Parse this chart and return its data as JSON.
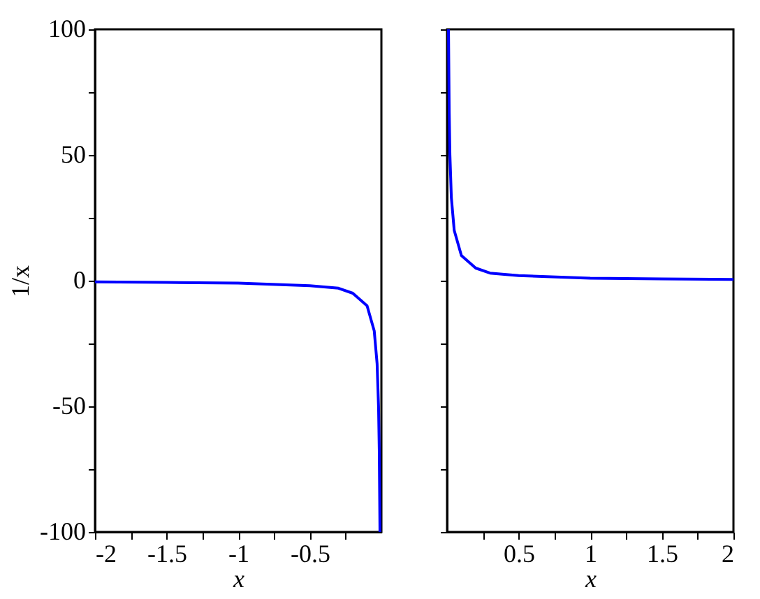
{
  "chart_data": [
    {
      "type": "line",
      "ylabel": "1/x",
      "xlabel": "x",
      "x": [
        -2,
        -1.5,
        -1,
        -0.5,
        -0.3,
        -0.2,
        -0.1,
        -0.05,
        -0.03,
        -0.02,
        -0.015,
        -0.01
      ],
      "series": [
        {
          "color": "#0000ff",
          "values": [
            -0.5,
            -0.7,
            -1,
            -2,
            -3,
            -5,
            -10,
            -20,
            -33,
            -50,
            -67,
            -100
          ]
        }
      ],
      "xlim": [
        -2,
        0
      ],
      "xticks": [
        -2,
        {
          "value": -1.75,
          "label": null
        },
        -1.5,
        {
          "value": -1.25,
          "label": null
        },
        -1,
        {
          "value": -0.75,
          "label": null
        },
        -0.5,
        {
          "value": -0.25,
          "label": null
        }
      ],
      "ylim": [
        -100,
        100
      ],
      "yticks": [
        -100,
        {
          "value": -75,
          "label": null
        },
        -50,
        {
          "value": -25,
          "label": null
        },
        0,
        {
          "value": 25,
          "label": null
        },
        50,
        {
          "value": 75,
          "label": null
        },
        100
      ],
      "grid": false
    },
    {
      "type": "line",
      "xlabel": "x",
      "x": [
        0.01,
        0.015,
        0.02,
        0.03,
        0.05,
        0.1,
        0.2,
        0.3,
        0.5,
        1,
        1.5,
        2
      ],
      "series": [
        {
          "color": "#0000ff",
          "values": [
            100,
            67,
            50,
            33,
            20,
            10,
            5,
            3,
            2,
            1,
            0.7,
            0.5
          ]
        }
      ],
      "xlim": [
        0,
        2
      ],
      "xticks": [
        {
          "value": 0.25,
          "label": null
        },
        0.5,
        {
          "value": 0.75,
          "label": null
        },
        1,
        {
          "value": 1.25,
          "label": null
        },
        1.5,
        {
          "value": 1.75,
          "label": null
        },
        2
      ],
      "ylim": [
        -100,
        100
      ],
      "yticks": [
        {
          "value": -100,
          "label": null
        },
        {
          "value": -75,
          "label": null
        },
        {
          "value": -50,
          "label": null
        },
        {
          "value": -25,
          "label": null
        },
        {
          "value": 0,
          "label": null
        },
        {
          "value": 25,
          "label": null
        },
        {
          "value": 50,
          "label": null
        },
        {
          "value": 75,
          "label": null
        },
        {
          "value": 100,
          "label": null
        }
      ],
      "tick_labels": "x",
      "grid": false
    }
  ]
}
